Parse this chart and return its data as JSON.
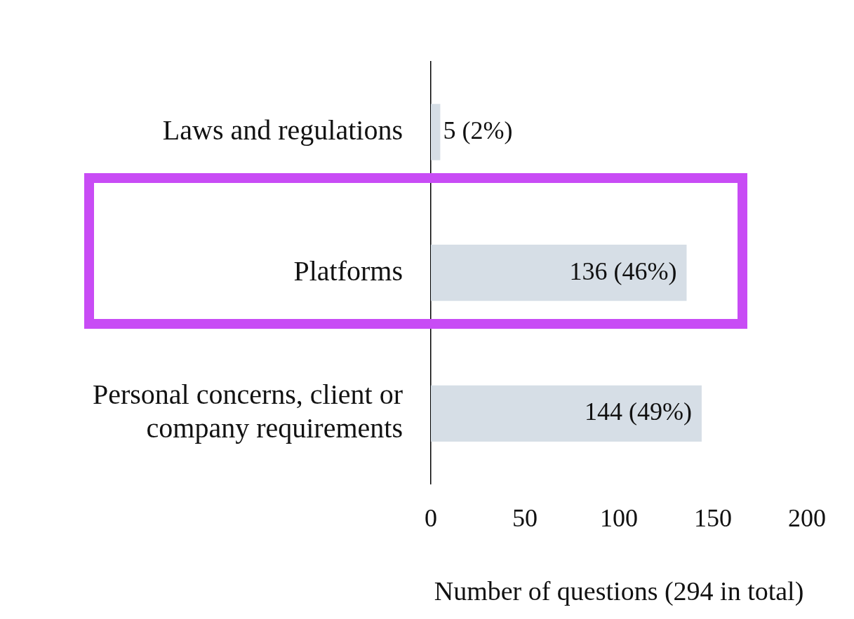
{
  "chart_data": {
    "type": "bar",
    "orientation": "horizontal",
    "xlabel": "Number of questions (294 in total)",
    "categories": [
      "Laws and regulations",
      "Platforms",
      "Personal concerns, client or company requirements"
    ],
    "values": [
      5,
      136,
      144
    ],
    "color": "#d6dee6",
    "value_labels": [
      "5 (2%)",
      "136 (46%)",
      "144 (49%)"
    ],
    "xlim": [
      0,
      200
    ],
    "xticks": [
      0,
      50,
      100,
      150,
      200
    ],
    "grid": false,
    "legend": false
  }
}
